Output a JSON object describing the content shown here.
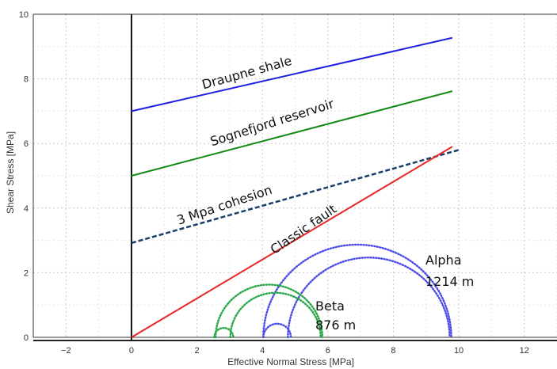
{
  "chart_data": {
    "type": "line",
    "xlabel": "Effective Normal Stress [MPa]",
    "ylabel": "Shear Stress [MPa]",
    "xlim": [
      -3,
      13
    ],
    "ylim": [
      0,
      10
    ],
    "xticks": [
      -2,
      0,
      2,
      4,
      6,
      8,
      10,
      12
    ],
    "yticks": [
      0,
      2,
      4,
      6,
      8,
      10
    ],
    "grid": true,
    "series": [
      {
        "key": "draupne",
        "name": "Draupne shale",
        "color": "#1f1fe0",
        "style": "solid",
        "x": [
          0,
          9.8
        ],
        "y": [
          7.0,
          9.27
        ]
      },
      {
        "key": "sognefjord",
        "name": "Sognefjord reservoir",
        "color": "#138a13",
        "style": "solid",
        "x": [
          0,
          9.8
        ],
        "y": [
          5.0,
          7.62
        ]
      },
      {
        "key": "cohesion",
        "name": "3 Mpa cohesion",
        "color": "#1a3f6b",
        "style": "dashed",
        "x": [
          0,
          10.0
        ],
        "y": [
          2.92,
          5.8
        ]
      },
      {
        "key": "classic",
        "name": "Classic fault",
        "color": "#e82424",
        "style": "solid",
        "x": [
          0,
          9.8
        ],
        "y": [
          0.0,
          5.9
        ]
      }
    ],
    "mohr_circles": [
      {
        "group": "alpha",
        "color": "#4d4de8",
        "center": 6.9,
        "radius": 2.87
      },
      {
        "group": "alpha",
        "color": "#4d4de8",
        "center": 7.25,
        "radius": 2.47
      },
      {
        "group": "alpha",
        "color": "#4d4de8",
        "center": 4.45,
        "radius": 0.42
      },
      {
        "group": "beta",
        "color": "#2aa84a",
        "center": 4.2,
        "radius": 1.63
      },
      {
        "group": "beta",
        "color": "#2aa84a",
        "center": 4.4,
        "radius": 1.38
      },
      {
        "group": "beta",
        "color": "#2aa84a",
        "center": 2.82,
        "radius": 0.29
      }
    ],
    "annotations": [
      {
        "key": "alpha",
        "lines": [
          "Alpha",
          "1214 m"
        ]
      },
      {
        "key": "beta",
        "lines": [
          "Beta",
          "876 m"
        ]
      }
    ]
  }
}
